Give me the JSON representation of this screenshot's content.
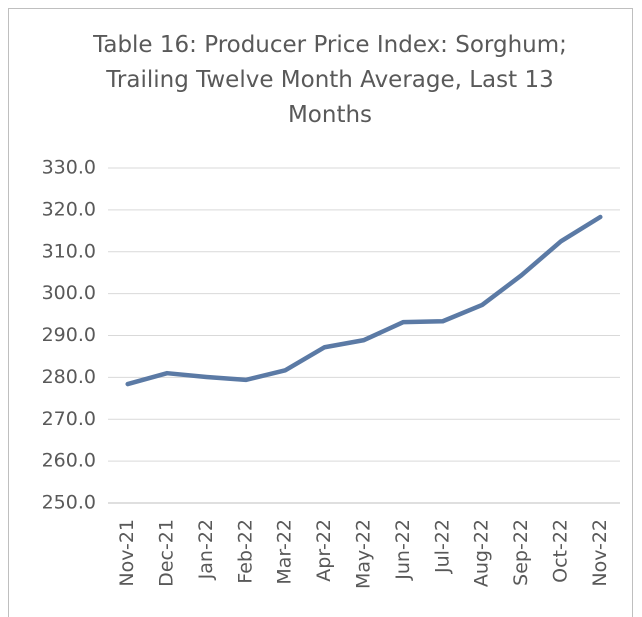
{
  "chart_data": {
    "type": "line",
    "title": "Table 16: Producer Price Index: Sorghum;\nTrailing Twelve Month Average, Last 13\nMonths",
    "categories": [
      "Nov-21",
      "Dec-21",
      "Jan-22",
      "Feb-22",
      "Mar-22",
      "Apr-22",
      "May-22",
      "Jun-22",
      "Jul-22",
      "Aug-22",
      "Sep-22",
      "Oct-22",
      "Nov-22"
    ],
    "series": [
      {
        "name": "Producer Price Index: Sorghum",
        "color": "#5b7aa5",
        "values": [
          278.4,
          281.0,
          280.1,
          279.4,
          281.7,
          287.2,
          288.9,
          293.2,
          293.4,
          297.3,
          304.4,
          312.5,
          318.3
        ]
      }
    ],
    "ylim": [
      250,
      330
    ],
    "yticks": [
      {
        "value": 250,
        "label": "250.0"
      },
      {
        "value": 260,
        "label": "260.0"
      },
      {
        "value": 270,
        "label": "270.0"
      },
      {
        "value": 280,
        "label": "280.0"
      },
      {
        "value": 290,
        "label": "290.0"
      },
      {
        "value": 300,
        "label": "300.0"
      },
      {
        "value": 310,
        "label": "310.0"
      },
      {
        "value": 320,
        "label": "320.0"
      },
      {
        "value": 330,
        "label": "330.0"
      }
    ],
    "grid": true
  }
}
